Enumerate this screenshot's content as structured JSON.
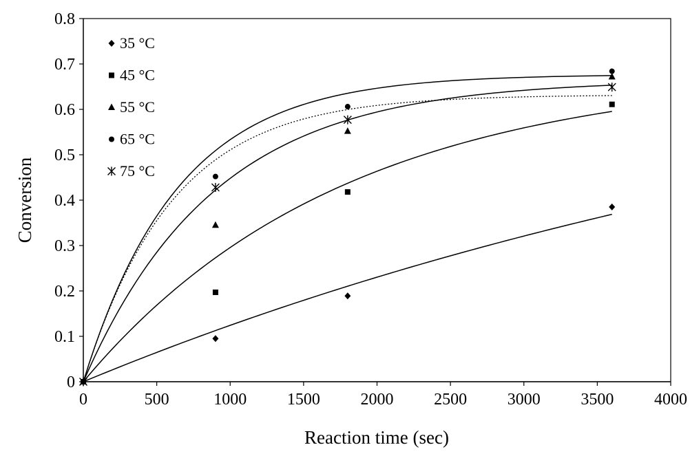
{
  "chart_data": {
    "type": "scatter",
    "title": "",
    "xlabel": "Reaction time (sec)",
    "ylabel": "Conversion",
    "xlim": [
      0,
      4000
    ],
    "ylim": [
      0,
      0.8
    ],
    "x_ticks": [
      0,
      500,
      1000,
      1500,
      2000,
      2500,
      3000,
      3500,
      4000
    ],
    "y_ticks": [
      "0",
      "0.1",
      "0.2",
      "0.3",
      "0.4",
      "0.5",
      "0.6",
      "0.7",
      "0.8"
    ],
    "grid": false,
    "legend_position": "top-left",
    "series": [
      {
        "name": "35 °C",
        "marker": "diamond",
        "points": [
          [
            0,
            0
          ],
          [
            900,
            0.095
          ],
          [
            1800,
            0.189
          ],
          [
            3600,
            0.385
          ]
        ],
        "fit": {
          "style": "solid",
          "plateau": 0.85,
          "rate": 0.000158
        }
      },
      {
        "name": "45 °C",
        "marker": "square",
        "points": [
          [
            0,
            0
          ],
          [
            900,
            0.197
          ],
          [
            1800,
            0.418
          ],
          [
            3600,
            0.611
          ]
        ],
        "fit": {
          "style": "solid",
          "plateau": 0.685,
          "rate": 0.000565
        }
      },
      {
        "name": "55 °C",
        "marker": "triangle",
        "points": [
          [
            0,
            0
          ],
          [
            900,
            0.345
          ],
          [
            1800,
            0.552
          ],
          [
            3600,
            0.672
          ]
        ],
        "fit": {
          "style": "solid",
          "plateau": 0.665,
          "rate": 0.00112
        }
      },
      {
        "name": "65 °C",
        "marker": "circle",
        "points": [
          [
            0,
            0
          ],
          [
            900,
            0.452
          ],
          [
            1800,
            0.606
          ],
          [
            3600,
            0.684
          ]
        ],
        "fit": {
          "style": "solid",
          "plateau": 0.677,
          "rate": 0.00155
        }
      },
      {
        "name": "75 °C",
        "marker": "asterisk",
        "points": [
          [
            0,
            0
          ],
          [
            900,
            0.428
          ],
          [
            1800,
            0.577
          ],
          [
            3600,
            0.649
          ]
        ],
        "fit": {
          "style": "dotted",
          "plateau": 0.632,
          "rate": 0.00165
        }
      }
    ]
  }
}
